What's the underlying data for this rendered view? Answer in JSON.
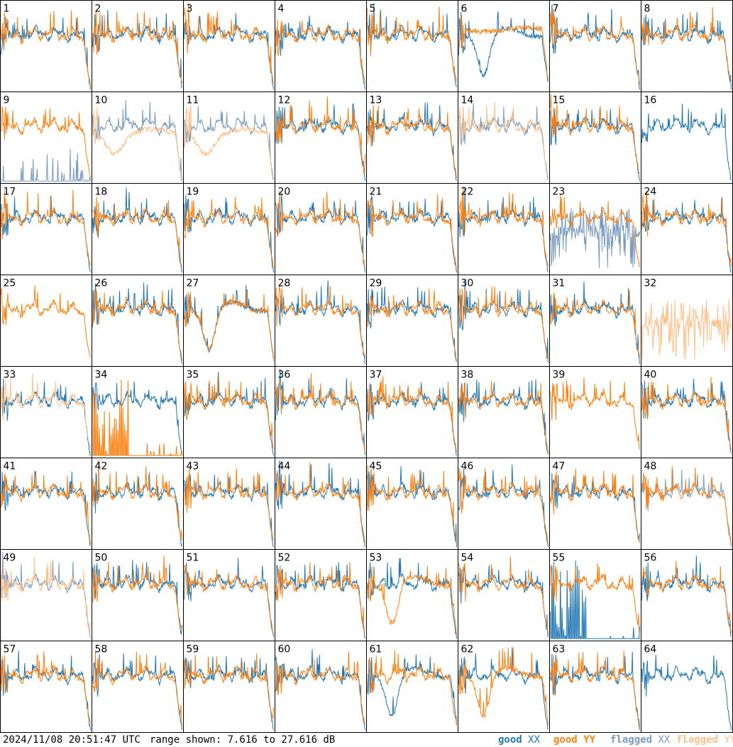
{
  "colors": {
    "good_xx": "#1f77b4",
    "good_yy": "#ff7f0e",
    "flagged_xx": "#7a9bbd",
    "flagged_yy": "#ffc08a",
    "frame": "#000000",
    "background": "#ffffff"
  },
  "footer": {
    "timestamp": "2024/11/08 20:51:47 UTC",
    "range_label": "range shown: 7.616 to 27.616 dB",
    "legend": {
      "good_word": "good",
      "flagged_word": "flagged",
      "xx": "XX",
      "yy": "YY"
    }
  },
  "chart_data": {
    "type": "line",
    "layout": "small-multiples 8x8",
    "panel_count": 64,
    "panel_labels": [
      "1",
      "2",
      "3",
      "4",
      "5",
      "6",
      "7",
      "8",
      "9",
      "10",
      "11",
      "12",
      "13",
      "14",
      "15",
      "16",
      "17",
      "18",
      "19",
      "20",
      "21",
      "22",
      "23",
      "24",
      "25",
      "26",
      "27",
      "28",
      "29",
      "30",
      "31",
      "32",
      "33",
      "34",
      "35",
      "36",
      "37",
      "38",
      "39",
      "40",
      "41",
      "42",
      "43",
      "44",
      "45",
      "46",
      "47",
      "48",
      "49",
      "50",
      "51",
      "52",
      "53",
      "54",
      "55",
      "56",
      "57",
      "58",
      "59",
      "60",
      "61",
      "62",
      "63",
      "64"
    ],
    "ylim": [
      7.616,
      27.616
    ],
    "y_unit": "dB",
    "series_names": [
      "good XX",
      "good YY",
      "flagged XX",
      "flagged YY"
    ],
    "panel_styles": {
      "6": {
        "xx": "dip",
        "yy": "flat-high"
      },
      "9": {
        "xx": "flagged-low",
        "yy": "normal"
      },
      "10": {
        "xx": "flagged",
        "yy": "flagged-dip"
      },
      "11": {
        "xx": "flagged",
        "yy": "flagged-dip"
      },
      "14": {
        "xx": "flagged",
        "yy": "flagged"
      },
      "16": {
        "xx": "normal",
        "yy": "absent"
      },
      "23": {
        "xx": "flagged-noisy",
        "yy": "normal"
      },
      "25": {
        "xx": "absent",
        "yy": "normal"
      },
      "27": {
        "xx": "dip",
        "yy": "dip"
      },
      "32": {
        "xx": "absent",
        "yy": "flagged-noisy"
      },
      "33": {
        "xx": "normal",
        "yy": "flagged"
      },
      "34": {
        "xx": "normal",
        "yy": "spikes-low"
      },
      "39": {
        "xx": "absent",
        "yy": "normal"
      },
      "48": {
        "xx": "flagged",
        "yy": "normal"
      },
      "49": {
        "xx": "flagged",
        "yy": "flagged"
      },
      "53": {
        "xx": "normal",
        "yy": "dip"
      },
      "55": {
        "xx": "spikes-low",
        "yy": "normal"
      },
      "61": {
        "xx": "dip",
        "yy": "normal"
      },
      "62": {
        "xx": "normal",
        "yy": "dip"
      },
      "64": {
        "xx": "normal",
        "yy": "absent"
      }
    }
  }
}
